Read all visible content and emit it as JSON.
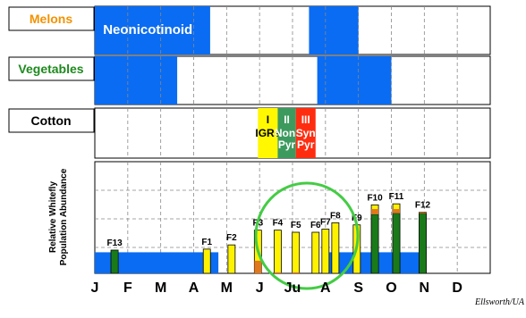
{
  "crops": [
    {
      "label": "Melons",
      "label_color": "#f39200",
      "blocks": [
        [
          0,
          3.5,
          "#0a6cf2"
        ],
        [
          6.5,
          8,
          "#0a6cf2"
        ]
      ],
      "block_text": "Neonicotinoid"
    },
    {
      "label": "Vegetables",
      "label_color": "#1e8a1e",
      "blocks": [
        [
          0,
          2.5,
          "#0a6cf2"
        ],
        [
          6.75,
          9,
          "#0a6cf2"
        ]
      ]
    },
    {
      "label": "Cotton",
      "label_color": "#000000",
      "blocks": []
    }
  ],
  "cotton_stages": [
    {
      "num": "I",
      "text": [
        "IGRs"
      ],
      "color": "#fff800",
      "text_color": "#000000",
      "x0": 4.95,
      "x1": 5.55
    },
    {
      "num": "II",
      "text": [
        "Non-",
        "Pyr"
      ],
      "color": "#3d9a5e",
      "text_color": "#ffffff",
      "x0": 5.55,
      "x1": 6.1
    },
    {
      "num": "III",
      "text": [
        "Syn",
        "Pyr"
      ],
      "color": "#ff2d10",
      "text_color": "#ffffff",
      "x0": 6.1,
      "x1": 6.7
    }
  ],
  "chart_data": {
    "type": "bar",
    "ylabel": [
      "Relative Whitefly",
      "Population Abundance"
    ],
    "months": [
      "J",
      "F",
      "M",
      "A",
      "M",
      "J",
      "Ju",
      "A",
      "S",
      "O",
      "N",
      "D"
    ],
    "baseline_color": "#0a6cf2",
    "baseline_segments": [
      [
        0,
        3.75
      ],
      [
        7.0,
        10.0
      ]
    ],
    "baseline_level": 1.0,
    "ylim": [
      0,
      5.3
    ],
    "generations": [
      {
        "label": "F13",
        "x": 0.6,
        "value": 1.1,
        "green": 1.1,
        "orange": 0
      },
      {
        "label": "F1",
        "x": 3.4,
        "value": 1.15,
        "green": 0,
        "orange": 0
      },
      {
        "label": "F2",
        "x": 4.15,
        "value": 1.35,
        "green": 0,
        "orange": 0
      },
      {
        "label": "F3",
        "x": 4.95,
        "value": 2.05,
        "green": 0,
        "orange": 0.6
      },
      {
        "label": "F4",
        "x": 5.55,
        "value": 2.05,
        "green": 0,
        "orange": 0.05
      },
      {
        "label": "F5",
        "x": 6.1,
        "value": 1.95,
        "green": 0,
        "orange": 0.05
      },
      {
        "label": "F6",
        "x": 6.7,
        "value": 1.95,
        "green": 0,
        "orange": 0
      },
      {
        "label": "F7",
        "x": 7.0,
        "value": 2.1,
        "green": 0,
        "orange": 0
      },
      {
        "label": "F8",
        "x": 7.3,
        "value": 2.4,
        "green": 0,
        "orange": 0
      },
      {
        "label": "F9",
        "x": 7.95,
        "value": 2.3,
        "green": 0,
        "orange": 0
      },
      {
        "label": "F10",
        "x": 8.5,
        "value": 3.25,
        "green": 2.8,
        "orange": 0.25
      },
      {
        "label": "F11",
        "x": 9.15,
        "value": 3.3,
        "green": 2.85,
        "orange": 0.2
      },
      {
        "label": "F12",
        "x": 9.95,
        "value": 2.9,
        "green": 2.85,
        "orange": 0.05
      }
    ],
    "bar_colors": {
      "yellow": "#fff200",
      "orange": "#e0781e",
      "green": "#1a7a1a"
    },
    "circle": {
      "color": "#44cc44"
    }
  },
  "credit": "Ellsworth/UA"
}
